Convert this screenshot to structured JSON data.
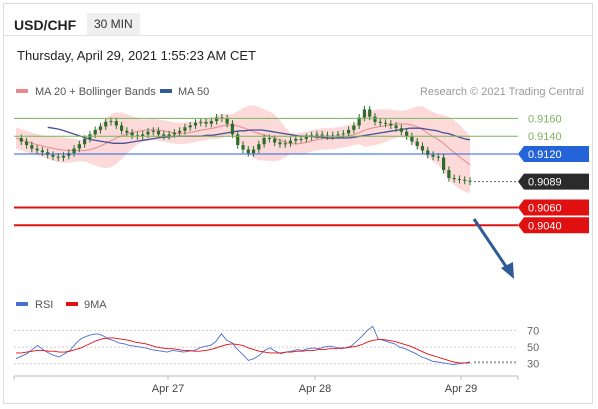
{
  "header": {
    "symbol": "USD/CHF",
    "timeframe": "30 MIN",
    "datetime": "Thursday, April 29, 2021 1:55:23 AM CET"
  },
  "colors": {
    "candle": "#2a6e2a",
    "ma20": "#e88a8a",
    "bollinger_fill": "#fbd3d3",
    "ma50": "#4a4f9a",
    "resistance": "#7db35b",
    "pivot": "#2563d9",
    "support": "#e01010",
    "last": "#2b2b2b",
    "rsi": "#4a6fd6",
    "rsi_ma": "#e01010",
    "arrow": "#2f5b96"
  },
  "chart_data": [
    {
      "type": "line",
      "title": "USD/CHF",
      "subtitle": "30 MIN",
      "legend": [
        "MA 20 + Bollinger Bands",
        "MA 50"
      ],
      "credit": "Research © 2021 Trading Central",
      "x_ticks": [
        "Apr 27",
        "Apr 28",
        "Apr 29"
      ],
      "y_range": [
        0.9028,
        0.9175
      ],
      "levels": [
        {
          "label": "0.9160",
          "value": 0.916,
          "kind": "resistance"
        },
        {
          "label": "0.9140",
          "value": 0.914,
          "kind": "resistance"
        },
        {
          "label": "0.9120",
          "value": 0.912,
          "kind": "pivot"
        },
        {
          "label": "0.9089",
          "value": 0.9089,
          "kind": "last"
        },
        {
          "label": "0.9060",
          "value": 0.906,
          "kind": "support"
        },
        {
          "label": "0.9040",
          "value": 0.904,
          "kind": "support"
        }
      ],
      "price": [
        0.9138,
        0.9134,
        0.913,
        0.9126,
        0.9124,
        0.9122,
        0.9119,
        0.9117,
        0.9116,
        0.9118,
        0.9121,
        0.9126,
        0.9131,
        0.9137,
        0.9142,
        0.9147,
        0.9151,
        0.9156,
        0.9157,
        0.9152,
        0.9146,
        0.9144,
        0.9141,
        0.914,
        0.9142,
        0.9145,
        0.9146,
        0.9142,
        0.914,
        0.9142,
        0.9144,
        0.9146,
        0.915,
        0.9152,
        0.9155,
        0.9156,
        0.9154,
        0.9157,
        0.9161,
        0.916,
        0.9154,
        0.9142,
        0.913,
        0.9125,
        0.9121,
        0.9125,
        0.9131,
        0.9138,
        0.9137,
        0.9133,
        0.9131,
        0.9132,
        0.9135,
        0.9137,
        0.9137,
        0.9139,
        0.9141,
        0.9142,
        0.9141,
        0.914,
        0.9141,
        0.9142,
        0.9143,
        0.9147,
        0.9152,
        0.9161,
        0.917,
        0.9162,
        0.9156,
        0.9155,
        0.9154,
        0.9152,
        0.9149,
        0.9145,
        0.914,
        0.9134,
        0.9129,
        0.9124,
        0.9119,
        0.9117,
        0.9116,
        0.9102,
        0.9093,
        0.9092,
        0.9091,
        0.909,
        0.9089
      ],
      "ma50": [
        0.915,
        0.9149,
        0.9148,
        0.9146,
        0.9144,
        0.9142,
        0.914,
        0.9138,
        0.9136,
        0.9135,
        0.9134,
        0.9133,
        0.9132,
        0.9132,
        0.9132,
        0.9133,
        0.9134,
        0.9135,
        0.9136,
        0.9137,
        0.9138,
        0.9139,
        0.9139,
        0.914,
        0.914,
        0.914,
        0.914,
        0.914,
        0.914,
        0.9141,
        0.9141,
        0.9142,
        0.9143,
        0.9144,
        0.9145,
        0.9146,
        0.9146,
        0.9147,
        0.9147,
        0.9147,
        0.9146,
        0.9145,
        0.9144,
        0.9143,
        0.9142,
        0.9141,
        0.914,
        0.914,
        0.914,
        0.9139,
        0.9139,
        0.9138,
        0.9138,
        0.9138,
        0.9138,
        0.9138,
        0.9139,
        0.914,
        0.9141,
        0.9142,
        0.9143,
        0.9144,
        0.9145,
        0.9146,
        0.9147,
        0.9148,
        0.9149,
        0.9149,
        0.9149,
        0.9148,
        0.9147,
        0.9146,
        0.9144,
        0.9143,
        0.9141,
        0.9139,
        0.9137,
        0.9136
      ]
    },
    {
      "type": "line",
      "legend": [
        "RSI",
        "9MA"
      ],
      "x_ticks": [
        "Apr 27",
        "Apr 28",
        "Apr 29"
      ],
      "y_ticks": [
        "70",
        "50",
        "30"
      ],
      "y_range": [
        20,
        85
      ],
      "rsi": [
        36,
        39,
        42,
        47,
        52,
        47,
        43,
        40,
        38,
        42,
        46,
        54,
        60,
        63,
        65,
        66,
        64,
        60,
        58,
        55,
        54,
        52,
        51,
        50,
        49,
        47,
        46,
        45,
        44,
        46,
        45,
        44,
        45,
        46,
        49,
        51,
        52,
        57,
        66,
        58,
        55,
        47,
        41,
        34,
        36,
        40,
        46,
        49,
        45,
        42,
        44,
        45,
        47,
        46,
        48,
        49,
        48,
        50,
        51,
        50,
        48,
        49,
        51,
        57,
        63,
        70,
        75,
        60,
        58,
        56,
        54,
        50,
        48,
        45,
        42,
        38,
        36,
        33,
        32,
        31,
        30,
        29,
        30,
        31,
        32
      ],
      "ma9": [
        43,
        43,
        44,
        45,
        46,
        46,
        45,
        45,
        44,
        44,
        45,
        47,
        49,
        52,
        55,
        58,
        60,
        61,
        61,
        60,
        59,
        58,
        56,
        55,
        54,
        52,
        50,
        49,
        48,
        48,
        47,
        46,
        46,
        45,
        45,
        46,
        47,
        49,
        51,
        53,
        54,
        53,
        52,
        49,
        47,
        45,
        44,
        43,
        43,
        43,
        44,
        44,
        45,
        45,
        46,
        46,
        47,
        47,
        48,
        48,
        49,
        49,
        50,
        51,
        53,
        56,
        58,
        59,
        59,
        58,
        57,
        55,
        53,
        51,
        48,
        45,
        42,
        40,
        38,
        36,
        34,
        32,
        31,
        31,
        31
      ]
    }
  ]
}
